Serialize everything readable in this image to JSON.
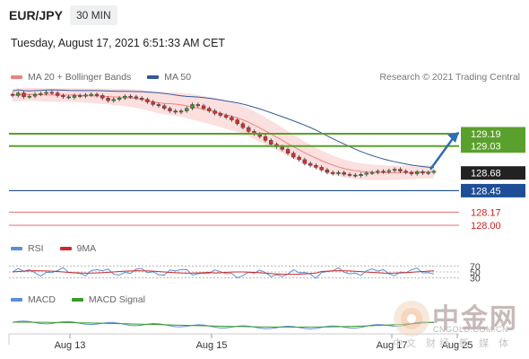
{
  "header": {
    "symbol": "EUR/JPY",
    "timeframe": "30 MIN",
    "datetime": "Tuesday, August 17, 2021 6:51:33 AM CET"
  },
  "legend_main": [
    {
      "label": "MA 20 + Bollinger Bands",
      "color": "#f08080"
    },
    {
      "label": "MA 50",
      "color": "#34589c"
    }
  ],
  "credit": "Research © 2021 Trading Central",
  "legend_rsi": [
    {
      "label": "RSI",
      "color": "#5b8ed6"
    },
    {
      "label": "9MA",
      "color": "#cc2a2a"
    }
  ],
  "legend_macd": [
    {
      "label": "MACD",
      "color": "#5b8ed6"
    },
    {
      "label": "MACD Signal",
      "color": "#3a9a28"
    }
  ],
  "watermark": {
    "cn": "中金网",
    "url": "CNGOLD.COM.CN",
    "sub": "中文 财经 新 媒 体"
  },
  "chart_data": [
    {
      "type": "line",
      "name": "price",
      "x_ticks": [
        "Aug 13",
        "Aug 15",
        "Aug 17",
        "Aug 25"
      ],
      "close": [
        129.86,
        129.9,
        129.84,
        129.85,
        129.88,
        129.89,
        129.91,
        129.9,
        129.86,
        129.84,
        129.83,
        129.86,
        129.85,
        129.87,
        129.88,
        129.86,
        129.82,
        129.78,
        129.8,
        129.82,
        129.85,
        129.84,
        129.82,
        129.8,
        129.76,
        129.72,
        129.7,
        129.66,
        129.62,
        129.6,
        129.62,
        129.66,
        129.72,
        129.7,
        129.66,
        129.62,
        129.58,
        129.55,
        129.52,
        129.48,
        129.42,
        129.36,
        129.3,
        129.26,
        129.22,
        129.16,
        129.1,
        129.06,
        129.02,
        128.96,
        128.9,
        128.86,
        128.8,
        128.77,
        128.74,
        128.7,
        128.66,
        128.64,
        128.66,
        128.63,
        128.62,
        128.61,
        128.63,
        128.65,
        128.66,
        128.68,
        128.67,
        128.69,
        128.71,
        128.68,
        128.66,
        128.64,
        128.67,
        128.65,
        128.66,
        128.68
      ],
      "levels": [
        {
          "value": 129.19,
          "label": "129.19",
          "kind": "resistance"
        },
        {
          "value": 129.03,
          "label": "129.03",
          "kind": "resistance"
        },
        {
          "value": 128.68,
          "label": "128.68",
          "kind": "last"
        },
        {
          "value": 128.45,
          "label": "128.45",
          "kind": "support"
        },
        {
          "value": 128.17,
          "label": "128.17",
          "kind": "target"
        },
        {
          "value": 128.0,
          "label": "128.00",
          "kind": "target"
        }
      ]
    },
    {
      "type": "line",
      "name": "rsi",
      "levels": [
        70,
        50,
        30
      ],
      "level_labels": [
        "70",
        "50",
        "30"
      ]
    },
    {
      "type": "line",
      "name": "macd"
    }
  ],
  "colors": {
    "resistance": "#5aa02c",
    "support": "#1f4e96",
    "target": "#e07070",
    "last": "#222222",
    "up": "#3a9a28",
    "down": "#cc3333",
    "arrow": "#2f6db3",
    "band": "#fbd4d4"
  }
}
